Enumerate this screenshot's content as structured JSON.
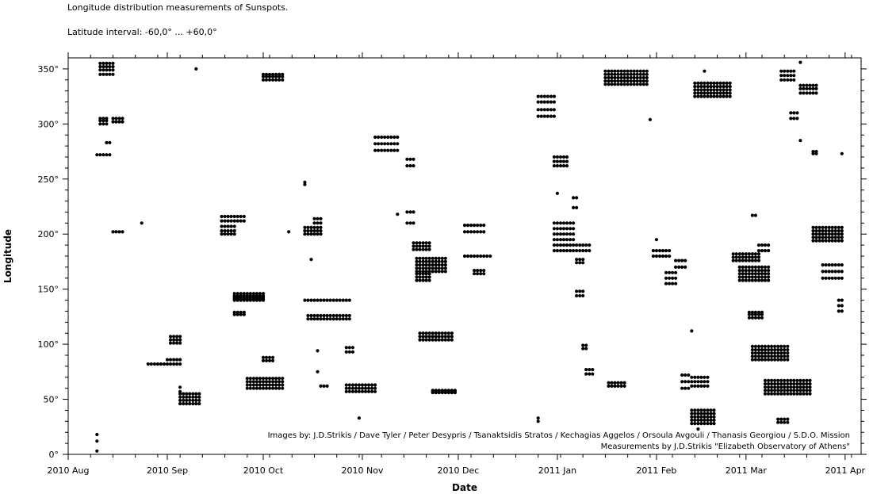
{
  "chart_data": {
    "type": "scatter",
    "title": "Longitude distribution measurements of  Sunspots.",
    "subtitle": "Latitude interval: -60,0° ... +60,0°",
    "xlabel": "Date",
    "ylabel": "Longitude",
    "xlim": [
      "2010-08-01",
      "2011-04-06"
    ],
    "ylim": [
      0,
      360
    ],
    "x_ticks": [
      "2010 Aug",
      "2010 Sep",
      "2010 Oct",
      "2010 Nov",
      "2010 Dec",
      "2011 Jan",
      "2011 Feb",
      "2011 Mar",
      "2011 Apr"
    ],
    "y_ticks": [
      "0°",
      "50°",
      "100°",
      "150°",
      "200°",
      "250°",
      "300°",
      "350°"
    ],
    "y_tick_values": [
      0,
      50,
      100,
      150,
      200,
      250,
      300,
      350
    ],
    "credits": [
      "Images by: J.D.Strikis  /  Dave Tyler  /  Peter Desypris  /  Tsanaktsidis Stratos  /  Kechagias Aggelos  /  Orsoula Avgouli  /  Thanasis Georgiou  /  S.D.O. Mission",
      "Measurements by J.D.Strikis \"Elizabeth Observatory of Athens\""
    ],
    "grid": false,
    "legend": "none",
    "marker_color": "#000000",
    "groups": [
      {
        "start": "2010-08-10",
        "end": "2010-08-10",
        "lon": [
          3,
          12,
          18
        ]
      },
      {
        "start": "2010-08-11",
        "end": "2010-08-15",
        "lon": [
          345,
          349,
          352,
          355
        ]
      },
      {
        "start": "2010-08-11",
        "end": "2010-08-13",
        "lon": [
          300,
          303,
          305
        ]
      },
      {
        "start": "2010-08-10",
        "end": "2010-08-14",
        "lon": [
          272
        ]
      },
      {
        "start": "2010-08-13",
        "end": "2010-08-14",
        "lon": [
          283
        ]
      },
      {
        "start": "2010-08-15",
        "end": "2010-08-18",
        "lon": [
          302,
          305
        ]
      },
      {
        "start": "2010-08-15",
        "end": "2010-08-18",
        "lon": [
          202
        ]
      },
      {
        "start": "2010-08-24",
        "end": "2010-08-24",
        "lon": [
          210
        ]
      },
      {
        "start": "2010-08-26",
        "end": "2010-09-05",
        "lon": [
          82
        ]
      },
      {
        "start": "2010-09-01",
        "end": "2010-09-05",
        "lon": [
          86
        ]
      },
      {
        "start": "2010-09-02",
        "end": "2010-09-05",
        "lon": [
          101,
          104,
          107
        ]
      },
      {
        "start": "2010-09-05",
        "end": "2010-09-11",
        "lon": [
          46,
          49,
          52,
          55
        ]
      },
      {
        "start": "2010-09-05",
        "end": "2010-09-05",
        "lon": [
          57,
          61
        ]
      },
      {
        "start": "2010-09-10",
        "end": "2010-09-10",
        "lon": [
          350
        ]
      },
      {
        "start": "2010-09-18",
        "end": "2010-09-25",
        "lon": [
          212,
          216
        ]
      },
      {
        "start": "2010-09-18",
        "end": "2010-09-22",
        "lon": [
          200,
          203,
          207
        ]
      },
      {
        "start": "2010-09-22",
        "end": "2010-10-01",
        "lon": [
          146,
          144,
          143,
          142,
          141,
          140
        ]
      },
      {
        "start": "2010-09-22",
        "end": "2010-09-25",
        "lon": [
          127,
          129
        ]
      },
      {
        "start": "2010-09-26",
        "end": "2010-10-07",
        "lon": [
          60,
          63,
          66,
          69
        ]
      },
      {
        "start": "2010-10-01",
        "end": "2010-10-04",
        "lon": [
          85,
          88
        ]
      },
      {
        "start": "2010-10-01",
        "end": "2010-10-07",
        "lon": [
          340,
          343,
          345
        ]
      },
      {
        "start": "2010-10-09",
        "end": "2010-10-09",
        "lon": [
          202
        ]
      },
      {
        "start": "2010-10-14",
        "end": "2010-10-14",
        "lon": [
          245,
          247
        ]
      },
      {
        "start": "2010-10-14",
        "end": "2010-10-19",
        "lon": [
          200,
          203,
          206
        ]
      },
      {
        "start": "2010-10-17",
        "end": "2010-10-19",
        "lon": [
          210,
          214
        ]
      },
      {
        "start": "2010-10-16",
        "end": "2010-10-16",
        "lon": [
          177
        ]
      },
      {
        "start": "2010-10-14",
        "end": "2010-10-28",
        "lon": [
          140
        ]
      },
      {
        "start": "2010-10-15",
        "end": "2010-10-28",
        "lon": [
          126,
          123
        ]
      },
      {
        "start": "2010-10-18",
        "end": "2010-10-18",
        "lon": [
          75,
          94
        ]
      },
      {
        "start": "2010-10-19",
        "end": "2010-10-21",
        "lon": [
          62
        ]
      },
      {
        "start": "2010-10-27",
        "end": "2010-10-29",
        "lon": [
          93,
          97
        ]
      },
      {
        "start": "2010-10-27",
        "end": "2010-11-05",
        "lon": [
          57,
          60,
          63
        ]
      },
      {
        "start": "2010-10-31",
        "end": "2010-10-31",
        "lon": [
          33
        ]
      },
      {
        "start": "2010-11-05",
        "end": "2010-11-12",
        "lon": [
          276,
          282,
          288
        ]
      },
      {
        "start": "2010-11-12",
        "end": "2010-11-12",
        "lon": [
          218
        ]
      },
      {
        "start": "2010-11-15",
        "end": "2010-11-17",
        "lon": [
          268,
          262
        ]
      },
      {
        "start": "2010-11-15",
        "end": "2010-11-17",
        "lon": [
          210,
          220
        ]
      },
      {
        "start": "2010-11-17",
        "end": "2010-11-22",
        "lon": [
          186,
          189,
          192
        ]
      },
      {
        "start": "2010-11-18",
        "end": "2010-11-22",
        "lon": [
          158,
          161,
          164
        ]
      },
      {
        "start": "2010-11-18",
        "end": "2010-11-27",
        "lon": [
          166,
          169,
          172,
          175,
          178
        ]
      },
      {
        "start": "2010-11-19",
        "end": "2010-11-29",
        "lon": [
          110,
          107,
          104
        ]
      },
      {
        "start": "2010-11-23",
        "end": "2010-11-30",
        "lon": [
          57,
          58,
          56
        ]
      },
      {
        "start": "2010-12-03",
        "end": "2010-12-09",
        "lon": [
          208,
          202
        ]
      },
      {
        "start": "2010-12-03",
        "end": "2010-12-11",
        "lon": [
          180
        ]
      },
      {
        "start": "2010-12-06",
        "end": "2010-12-09",
        "lon": [
          164,
          167
        ]
      },
      {
        "start": "2010-12-26",
        "end": "2010-12-26",
        "lon": [
          30,
          33
        ]
      },
      {
        "start": "2010-12-26",
        "end": "2010-12-31",
        "lon": [
          307,
          313,
          320,
          325
        ]
      },
      {
        "start": "2010-12-31",
        "end": "2011-01-04",
        "lon": [
          262,
          266,
          270
        ]
      },
      {
        "start": "2010-12-31",
        "end": "2011-01-06",
        "lon": [
          195,
          200,
          205,
          210
        ]
      },
      {
        "start": "2010-12-31",
        "end": "2011-01-11",
        "lon": [
          190,
          185
        ]
      },
      {
        "start": "2011-01-01",
        "end": "2011-01-01",
        "lon": [
          237
        ]
      },
      {
        "start": "2011-01-06",
        "end": "2011-01-07",
        "lon": [
          224,
          233
        ]
      },
      {
        "start": "2011-01-07",
        "end": "2011-01-09",
        "lon": [
          174,
          177
        ]
      },
      {
        "start": "2011-01-07",
        "end": "2011-01-09",
        "lon": [
          144,
          148
        ]
      },
      {
        "start": "2011-01-09",
        "end": "2011-01-10",
        "lon": [
          96,
          99
        ]
      },
      {
        "start": "2011-01-10",
        "end": "2011-01-12",
        "lon": [
          73,
          77
        ]
      },
      {
        "start": "2011-01-17",
        "end": "2011-01-22",
        "lon": [
          62,
          65
        ]
      },
      {
        "start": "2011-01-16",
        "end": "2011-01-29",
        "lon": [
          336,
          339,
          342,
          345,
          348
        ]
      },
      {
        "start": "2011-01-30",
        "end": "2011-01-30",
        "lon": [
          304
        ]
      },
      {
        "start": "2011-01-31",
        "end": "2011-02-05",
        "lon": [
          180,
          185
        ]
      },
      {
        "start": "2011-02-01",
        "end": "2011-02-01",
        "lon": [
          195
        ]
      },
      {
        "start": "2011-02-04",
        "end": "2011-02-07",
        "lon": [
          155,
          160,
          165
        ]
      },
      {
        "start": "2011-02-07",
        "end": "2011-02-10",
        "lon": [
          170,
          176
        ]
      },
      {
        "start": "2011-02-09",
        "end": "2011-02-11",
        "lon": [
          60,
          66,
          72
        ]
      },
      {
        "start": "2011-02-12",
        "end": "2011-02-12",
        "lon": [
          112
        ]
      },
      {
        "start": "2011-02-12",
        "end": "2011-02-17",
        "lon": [
          62,
          66,
          70
        ]
      },
      {
        "start": "2011-02-12",
        "end": "2011-02-19",
        "lon": [
          28,
          31,
          34,
          37,
          40
        ]
      },
      {
        "start": "2011-02-14",
        "end": "2011-02-14",
        "lon": [
          23
        ]
      },
      {
        "start": "2011-02-13",
        "end": "2011-02-24",
        "lon": [
          325,
          328,
          331,
          334,
          337
        ]
      },
      {
        "start": "2011-02-16",
        "end": "2011-02-16",
        "lon": [
          348
        ]
      },
      {
        "start": "2011-02-25",
        "end": "2011-03-05",
        "lon": [
          176,
          179,
          182
        ]
      },
      {
        "start": "2011-02-27",
        "end": "2011-03-08",
        "lon": [
          158,
          161,
          164,
          167,
          170
        ]
      },
      {
        "start": "2011-03-03",
        "end": "2011-03-04",
        "lon": [
          217
        ]
      },
      {
        "start": "2011-03-05",
        "end": "2011-03-08",
        "lon": [
          185,
          190
        ]
      },
      {
        "start": "2011-03-02",
        "end": "2011-03-06",
        "lon": [
          124,
          127,
          129
        ]
      },
      {
        "start": "2011-03-03",
        "end": "2011-03-14",
        "lon": [
          86,
          89,
          92,
          95,
          98
        ]
      },
      {
        "start": "2011-03-07",
        "end": "2011-03-21",
        "lon": [
          55,
          58,
          61,
          64,
          67
        ]
      },
      {
        "start": "2011-03-11",
        "end": "2011-03-14",
        "lon": [
          29,
          32
        ]
      },
      {
        "start": "2011-03-12",
        "end": "2011-03-16",
        "lon": [
          340,
          344,
          348
        ]
      },
      {
        "start": "2011-03-15",
        "end": "2011-03-17",
        "lon": [
          305,
          310
        ]
      },
      {
        "start": "2011-03-18",
        "end": "2011-03-23",
        "lon": [
          328,
          332,
          335
        ]
      },
      {
        "start": "2011-03-18",
        "end": "2011-03-18",
        "lon": [
          356,
          285
        ]
      },
      {
        "start": "2011-03-22",
        "end": "2011-03-23",
        "lon": [
          273,
          275
        ]
      },
      {
        "start": "2011-03-22",
        "end": "2011-03-31",
        "lon": [
          194,
          197,
          200,
          203,
          206
        ]
      },
      {
        "start": "2011-03-25",
        "end": "2011-03-31",
        "lon": [
          160,
          166,
          172
        ]
      },
      {
        "start": "2011-03-30",
        "end": "2011-03-31",
        "lon": [
          130,
          135,
          140
        ]
      },
      {
        "start": "2011-03-31",
        "end": "2011-03-31",
        "lon": [
          273
        ]
      }
    ]
  }
}
